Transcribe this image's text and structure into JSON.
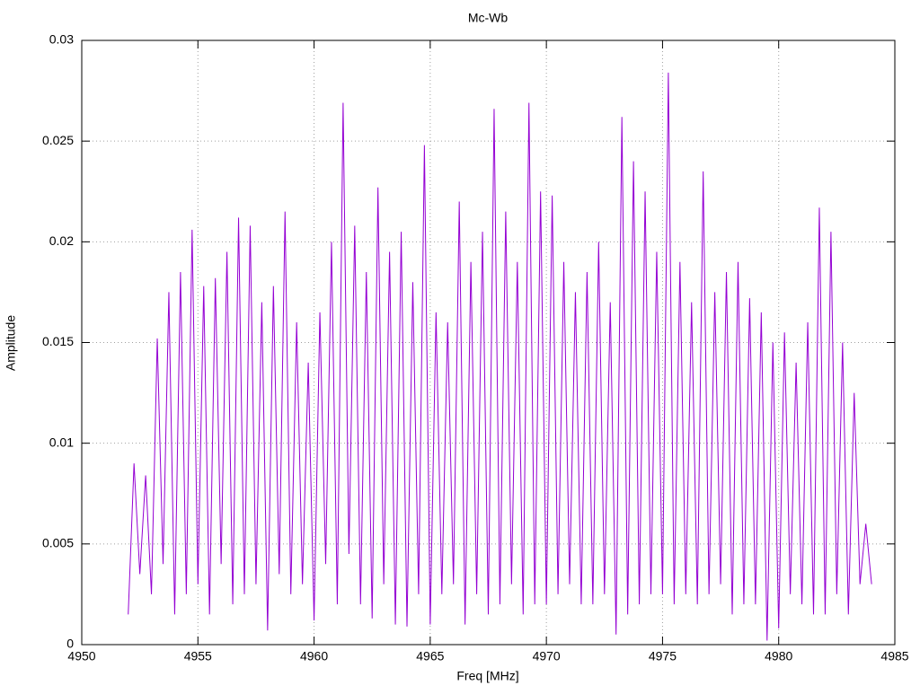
{
  "chart_data": {
    "type": "line",
    "title": "Mc-Wb",
    "x_label": "Freq [MHz]",
    "y_label": "Amplitude",
    "color": "#9400d3",
    "grid": true,
    "xlim": [
      4950,
      4985
    ],
    "xticks": [
      4950,
      4955,
      4960,
      4965,
      4970,
      4975,
      4980,
      4985
    ],
    "ylim": [
      0,
      0.03
    ],
    "yticks": [
      0,
      0.005,
      0.01,
      0.015,
      0.02,
      0.025,
      0.03
    ],
    "x": [
      4952,
      4952.25,
      4952.5,
      4952.75,
      4953,
      4953.25,
      4953.5,
      4953.75,
      4954,
      4954.25,
      4954.5,
      4954.75,
      4955,
      4955.25,
      4955.5,
      4955.75,
      4956,
      4956.25,
      4956.5,
      4956.75,
      4957,
      4957.25,
      4957.5,
      4957.75,
      4958,
      4958.25,
      4958.5,
      4958.75,
      4959,
      4959.25,
      4959.5,
      4959.75,
      4960,
      4960.25,
      4960.5,
      4960.75,
      4961,
      4961.25,
      4961.5,
      4961.75,
      4962,
      4962.25,
      4962.5,
      4962.75,
      4963,
      4963.25,
      4963.5,
      4963.75,
      4964,
      4964.25,
      4964.5,
      4964.75,
      4965,
      4965.25,
      4965.5,
      4965.75,
      4966,
      4966.25,
      4966.5,
      4966.75,
      4967,
      4967.25,
      4967.5,
      4967.75,
      4968,
      4968.25,
      4968.5,
      4968.75,
      4969,
      4969.25,
      4969.5,
      4969.75,
      4970,
      4970.25,
      4970.5,
      4970.75,
      4971,
      4971.25,
      4971.5,
      4971.75,
      4972,
      4972.25,
      4972.5,
      4972.75,
      4973,
      4973.25,
      4973.5,
      4973.75,
      4974,
      4974.25,
      4974.5,
      4974.75,
      4975,
      4975.25,
      4975.5,
      4975.75,
      4976,
      4976.25,
      4976.5,
      4976.75,
      4977,
      4977.25,
      4977.5,
      4977.75,
      4978,
      4978.25,
      4978.5,
      4978.75,
      4979,
      4979.25,
      4979.5,
      4979.75,
      4980,
      4980.25,
      4980.5,
      4980.75,
      4981,
      4981.25,
      4981.5,
      4981.75,
      4982,
      4982.25,
      4982.5,
      4982.75,
      4983,
      4983.25,
      4983.5,
      4983.75,
      4984
    ],
    "values": [
      0.0015,
      0.009,
      0.0035,
      0.0084,
      0.0025,
      0.0152,
      0.004,
      0.0175,
      0.0015,
      0.0185,
      0.0025,
      0.0206,
      0.003,
      0.0178,
      0.0015,
      0.0182,
      0.004,
      0.0195,
      0.002,
      0.0212,
      0.0025,
      0.0208,
      0.003,
      0.017,
      0.0007,
      0.0178,
      0.0035,
      0.0215,
      0.0025,
      0.016,
      0.003,
      0.014,
      0.0012,
      0.0165,
      0.004,
      0.02,
      0.002,
      0.0269,
      0.0045,
      0.0208,
      0.002,
      0.0185,
      0.0013,
      0.0227,
      0.003,
      0.0195,
      0.001,
      0.0205,
      0.0009,
      0.018,
      0.0025,
      0.0248,
      0.001,
      0.0165,
      0.0025,
      0.016,
      0.003,
      0.022,
      0.001,
      0.019,
      0.0025,
      0.0205,
      0.0015,
      0.0266,
      0.002,
      0.0215,
      0.003,
      0.019,
      0.0015,
      0.0269,
      0.002,
      0.0225,
      0.002,
      0.0223,
      0.0025,
      0.019,
      0.003,
      0.0175,
      0.002,
      0.0185,
      0.002,
      0.02,
      0.0025,
      0.017,
      0.0005,
      0.0262,
      0.0015,
      0.024,
      0.002,
      0.0225,
      0.0025,
      0.0195,
      0.0025,
      0.0284,
      0.002,
      0.019,
      0.0025,
      0.017,
      0.002,
      0.0235,
      0.0025,
      0.0175,
      0.003,
      0.0185,
      0.0015,
      0.019,
      0.002,
      0.0172,
      0.002,
      0.0165,
      0.0002,
      0.015,
      0.0008,
      0.0155,
      0.0025,
      0.014,
      0.002,
      0.016,
      0.0015,
      0.0217,
      0.0015,
      0.0205,
      0.0025,
      0.015,
      0.0015,
      0.0125,
      0.003,
      0.006,
      0.003
    ]
  }
}
